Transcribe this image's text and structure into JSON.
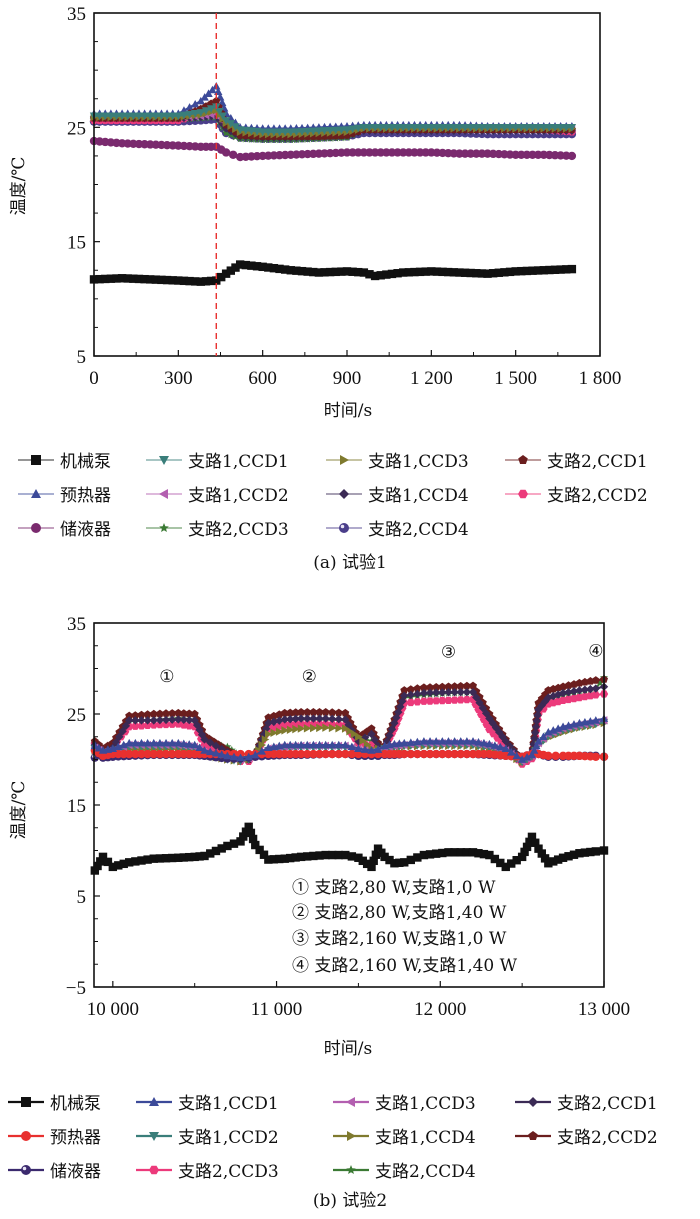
{
  "chart_data": [
    {
      "type": "line",
      "caption": "(a) 试验1",
      "xlabel": "时间/s",
      "ylabel": "温度/℃",
      "xlim": [
        0,
        1800
      ],
      "ylim": [
        5,
        35
      ],
      "xticks": [
        0,
        300,
        600,
        900,
        1200,
        1500,
        1800
      ],
      "xtick_labels": [
        "0",
        "300",
        "600",
        "900",
        "1 200",
        "1 500",
        "1 800"
      ],
      "yticks": [
        5,
        15,
        25,
        35
      ],
      "ytick_labels": [
        "5",
        "15",
        "25",
        "35"
      ],
      "grid": false,
      "vline": {
        "x": 435,
        "color": "#e8302f",
        "style": "dashed"
      },
      "legend_position": "bottom",
      "x": [
        0,
        100,
        200,
        300,
        380,
        435,
        470,
        520,
        600,
        700,
        800,
        900,
        960,
        1000,
        1100,
        1200,
        1300,
        1400,
        1500,
        1600,
        1700
      ],
      "series": [
        {
          "name": "机械泵",
          "color": "#111111",
          "marker": "square",
          "values": [
            11.7,
            11.8,
            11.7,
            11.6,
            11.5,
            11.6,
            12.2,
            13.0,
            12.8,
            12.5,
            12.3,
            12.4,
            12.3,
            12.0,
            12.3,
            12.4,
            12.3,
            12.2,
            12.4,
            12.5,
            12.6
          ]
        },
        {
          "name": "支路1,CCD1",
          "color": "#3a7e7a",
          "marker": "triangle-down",
          "values": [
            26.0,
            26.0,
            26.0,
            26.0,
            26.3,
            26.8,
            25.6,
            24.8,
            24.6,
            24.6,
            24.7,
            24.8,
            25.0,
            25.0,
            25.0,
            25.0,
            25.0,
            25.0,
            25.0,
            25.0,
            25.0
          ]
        },
        {
          "name": "支路1,CCD3",
          "color": "#7f7a2e",
          "marker": "triangle-right",
          "values": [
            25.9,
            25.9,
            25.9,
            25.9,
            26.1,
            26.5,
            25.4,
            24.6,
            24.4,
            24.4,
            24.5,
            24.6,
            24.9,
            24.9,
            24.9,
            24.9,
            24.9,
            24.9,
            24.9,
            24.9,
            24.9
          ]
        },
        {
          "name": "支路2,CCD1",
          "color": "#6b1e1e",
          "marker": "pentagon",
          "values": [
            25.8,
            25.8,
            25.8,
            25.8,
            26.6,
            27.3,
            25.2,
            24.3,
            24.2,
            24.2,
            24.2,
            24.3,
            24.8,
            24.8,
            24.8,
            24.8,
            24.8,
            24.8,
            24.8,
            24.8,
            24.8
          ]
        },
        {
          "name": "预热器",
          "color": "#3c4a99",
          "marker": "triangle-up",
          "values": [
            26.2,
            26.2,
            26.2,
            26.2,
            27.3,
            28.6,
            26.2,
            25.0,
            24.9,
            24.9,
            25.0,
            25.1,
            25.2,
            25.2,
            25.2,
            25.2,
            25.2,
            25.1,
            25.1,
            25.1,
            25.1
          ]
        },
        {
          "name": "支路1,CCD2",
          "color": "#b35fb0",
          "marker": "triangle-left",
          "values": [
            25.9,
            25.9,
            25.9,
            25.9,
            26.0,
            26.2,
            25.2,
            24.5,
            24.4,
            24.4,
            24.5,
            24.6,
            24.9,
            24.9,
            24.9,
            24.9,
            24.9,
            24.9,
            24.9,
            24.9,
            24.9
          ]
        },
        {
          "name": "支路1,CCD4",
          "color": "#3b2a55",
          "marker": "diamond",
          "values": [
            25.8,
            25.8,
            25.8,
            25.8,
            25.9,
            26.0,
            24.9,
            24.2,
            24.1,
            24.1,
            24.2,
            24.3,
            24.7,
            24.7,
            24.7,
            24.7,
            24.7,
            24.7,
            24.7,
            24.7,
            24.7
          ]
        },
        {
          "name": "支路2,CCD2",
          "color": "#ec3a7b",
          "marker": "hexagon",
          "values": [
            25.6,
            25.6,
            25.6,
            25.6,
            26.2,
            27.0,
            25.1,
            24.4,
            24.3,
            24.3,
            24.3,
            24.4,
            24.8,
            24.8,
            24.8,
            24.8,
            24.8,
            24.8,
            24.8,
            24.8,
            24.6
          ]
        },
        {
          "name": "储液器",
          "color": "#7a2a6e",
          "marker": "circle",
          "values": [
            23.8,
            23.6,
            23.5,
            23.4,
            23.3,
            23.3,
            22.8,
            22.4,
            22.5,
            22.6,
            22.7,
            22.8,
            22.8,
            22.8,
            22.8,
            22.8,
            22.7,
            22.7,
            22.6,
            22.6,
            22.5
          ]
        },
        {
          "name": "支路2,CCD3",
          "color": "#3b7a34",
          "marker": "star",
          "values": [
            25.7,
            25.7,
            25.7,
            25.7,
            25.8,
            25.9,
            24.5,
            24.0,
            23.9,
            23.9,
            24.0,
            24.1,
            24.8,
            24.8,
            24.8,
            24.8,
            24.8,
            24.8,
            24.8,
            24.8,
            24.8
          ]
        },
        {
          "name": "支路2,CCD4",
          "color": "#4a3e8a",
          "marker": "sphere",
          "values": [
            25.5,
            25.5,
            25.5,
            25.5,
            25.6,
            25.7,
            24.5,
            24.1,
            24.0,
            24.0,
            24.1,
            24.2,
            24.5,
            24.5,
            24.5,
            24.5,
            24.5,
            24.4,
            24.4,
            24.4,
            24.4
          ]
        }
      ],
      "legend_order": [
        "机械泵",
        "支路1,CCD1",
        "支路1,CCD3",
        "支路2,CCD1",
        "预热器",
        "支路1,CCD2",
        "支路1,CCD4",
        "支路2,CCD2",
        "储液器",
        "支路2,CCD3",
        "支路2,CCD4"
      ]
    },
    {
      "type": "line",
      "caption": "(b) 试验2",
      "xlabel": "时间/s",
      "ylabel": "温度/℃",
      "xlim": [
        9885,
        13000
      ],
      "ylim": [
        -5,
        35
      ],
      "xticks": [
        10000,
        11000,
        12000,
        13000
      ],
      "xtick_labels": [
        "10 000",
        "11 000",
        "12 000",
        "13 000"
      ],
      "yticks": [
        -5,
        5,
        15,
        25,
        35
      ],
      "ytick_labels": [
        "−5",
        "5",
        "15",
        "25",
        "35"
      ],
      "grid": false,
      "legend_position": "bottom",
      "annotations": [
        {
          "label": "①",
          "x": 10330,
          "y": 28.5
        },
        {
          "label": "②",
          "x": 11200,
          "y": 28.5
        },
        {
          "label": "③",
          "x": 12050,
          "y": 31.2
        },
        {
          "label": "④",
          "x": 12950,
          "y": 31.3
        }
      ],
      "condition_notes": [
        "① 支路2,80 W,支路1,0 W",
        "② 支路2,80 W,支路1,40 W",
        "③ 支路2,160 W,支路1,0 W",
        "④ 支路2,160 W,支路1,40 W"
      ],
      "x": [
        9890,
        9940,
        10000,
        10100,
        10250,
        10400,
        10500,
        10560,
        10700,
        10780,
        10830,
        10870,
        10950,
        11050,
        11150,
        11300,
        11420,
        11500,
        11580,
        11620,
        11660,
        11720,
        11780,
        11900,
        12050,
        12200,
        12300,
        12400,
        12500,
        12560,
        12600,
        12660,
        12750,
        12850,
        12950,
        13000
      ],
      "series": [
        {
          "name": "机械泵",
          "color": "#111111",
          "marker": "square",
          "values": [
            7.8,
            9.3,
            8.2,
            8.7,
            9.1,
            9.2,
            9.3,
            9.4,
            10.5,
            11.0,
            12.6,
            10.6,
            9.0,
            9.1,
            9.3,
            9.5,
            9.5,
            9.2,
            8.2,
            10.2,
            9.3,
            8.6,
            8.7,
            9.5,
            9.8,
            9.8,
            9.5,
            8.2,
            9.3,
            11.5,
            10.2,
            8.6,
            9.2,
            9.7,
            9.9,
            10.0
          ]
        },
        {
          "name": "支路1,CCD1",
          "color": "#3c4a99",
          "marker": "triangle-up",
          "values": [
            21.5,
            21.0,
            21.2,
            21.8,
            21.8,
            21.8,
            21.6,
            21.0,
            20.4,
            20.2,
            20.3,
            20.5,
            21.3,
            21.6,
            21.6,
            21.6,
            21.6,
            21.2,
            21.0,
            21.1,
            21.5,
            21.7,
            21.8,
            22.0,
            22.0,
            22.0,
            21.7,
            21.2,
            20.0,
            20.5,
            22.0,
            23.0,
            23.6,
            24.0,
            24.3,
            24.5
          ]
        },
        {
          "name": "预热器",
          "color": "#e8302f",
          "marker": "circle",
          "values": [
            21.0,
            20.4,
            20.6,
            20.6,
            20.6,
            20.6,
            20.6,
            20.6,
            20.6,
            20.6,
            20.6,
            20.6,
            20.6,
            20.6,
            20.6,
            20.6,
            20.6,
            20.6,
            20.6,
            20.6,
            20.6,
            20.6,
            20.6,
            20.6,
            20.6,
            20.6,
            20.6,
            20.4,
            20.3,
            20.6,
            20.6,
            20.4,
            20.4,
            20.4,
            20.3,
            20.3
          ]
        },
        {
          "name": "储液器",
          "color": "#3b2a6e",
          "marker": "sphere",
          "values": [
            20.2,
            20.2,
            20.3,
            20.4,
            20.5,
            20.5,
            20.5,
            20.4,
            20.1,
            20.1,
            20.2,
            20.3,
            20.4,
            20.5,
            20.5,
            20.6,
            20.6,
            20.4,
            20.4,
            20.4,
            20.5,
            20.5,
            20.6,
            20.6,
            20.6,
            20.6,
            20.5,
            20.4,
            20.3,
            20.6,
            20.6,
            20.3,
            20.3,
            20.4,
            20.4,
            20.3
          ]
        },
        {
          "name": "支路1,CCD3",
          "color": "#b35fb0",
          "marker": "triangle-left",
          "values": [
            21.3,
            20.8,
            21.0,
            21.6,
            21.6,
            21.6,
            21.4,
            20.8,
            20.2,
            20.0,
            20.1,
            20.4,
            21.2,
            21.4,
            21.5,
            21.5,
            21.5,
            21.1,
            20.8,
            21.0,
            21.3,
            21.5,
            21.6,
            21.8,
            21.8,
            21.8,
            21.5,
            21.0,
            19.8,
            20.4,
            21.8,
            22.8,
            23.4,
            23.8,
            24.1,
            24.3
          ]
        },
        {
          "name": "支路1,CCD2",
          "color": "#3a7e7a",
          "marker": "triangle-down",
          "values": [
            21.2,
            20.7,
            20.9,
            21.4,
            21.4,
            21.4,
            21.2,
            20.6,
            20.0,
            19.8,
            20.0,
            20.3,
            21.0,
            21.2,
            21.3,
            21.3,
            21.3,
            21.0,
            20.7,
            20.9,
            21.2,
            21.4,
            21.5,
            21.6,
            21.6,
            21.6,
            21.3,
            20.8,
            19.7,
            20.3,
            21.6,
            22.6,
            23.2,
            23.6,
            23.9,
            24.1
          ]
        },
        {
          "name": "支路1,CCD4",
          "color": "#7f7a2e",
          "marker": "triangle-right",
          "values": [
            21.0,
            20.6,
            20.8,
            21.1,
            21.1,
            21.2,
            21.0,
            20.5,
            20.0,
            19.8,
            20.0,
            20.4,
            22.8,
            23.2,
            23.4,
            23.5,
            23.4,
            22.5,
            21.2,
            21.2,
            21.2,
            21.3,
            21.4,
            21.5,
            21.5,
            21.5,
            21.2,
            20.8,
            19.7,
            20.3,
            21.6,
            22.4,
            23.0,
            23.5,
            23.8,
            24.0
          ]
        },
        {
          "name": "支路2,CCD1",
          "color": "#3b2a55",
          "marker": "diamond",
          "values": [
            21.6,
            20.8,
            21.3,
            24.3,
            24.3,
            24.4,
            24.3,
            22.2,
            20.8,
            20.0,
            20.0,
            20.3,
            24.0,
            24.4,
            24.5,
            24.5,
            24.4,
            22.0,
            22.8,
            21.5,
            21.3,
            24.0,
            27.0,
            27.3,
            27.4,
            27.4,
            24.5,
            22.0,
            19.8,
            20.4,
            25.5,
            26.8,
            27.3,
            27.6,
            27.8,
            28.0
          ]
        },
        {
          "name": "支路2,CCD2",
          "color": "#6b1e1e",
          "marker": "pentagon",
          "values": [
            22.0,
            21.2,
            21.8,
            24.8,
            25.0,
            25.1,
            25.0,
            22.6,
            21.0,
            20.1,
            20.0,
            20.3,
            24.6,
            25.1,
            25.2,
            25.2,
            25.1,
            22.4,
            23.4,
            21.8,
            21.5,
            24.4,
            27.6,
            27.9,
            28.0,
            28.1,
            25.0,
            22.2,
            19.9,
            20.5,
            26.2,
            27.6,
            28.0,
            28.4,
            28.7,
            28.8
          ]
        },
        {
          "name": "支路2,CCD3",
          "color": "#ec3a7b",
          "marker": "hexagon",
          "values": [
            21.8,
            20.7,
            21.4,
            23.6,
            23.8,
            23.9,
            23.6,
            21.6,
            20.4,
            19.8,
            19.8,
            20.3,
            23.4,
            23.8,
            23.9,
            23.9,
            23.8,
            21.8,
            21.6,
            21.2,
            21.3,
            23.4,
            26.2,
            26.4,
            26.5,
            26.6,
            23.3,
            21.4,
            19.5,
            20.1,
            25.0,
            26.1,
            26.5,
            26.8,
            27.1,
            27.2
          ]
        },
        {
          "name": "支路2,CCD4",
          "color": "#3b7a34",
          "marker": "star",
          "values": [
            21.4,
            21.1,
            21.3,
            24.2,
            24.3,
            24.5,
            24.3,
            21.8,
            21.4,
            20.3,
            20.3,
            20.5,
            24.1,
            24.3,
            24.4,
            24.4,
            24.3,
            22.5,
            22.0,
            21.5,
            21.5,
            23.8,
            26.8,
            27.1,
            27.3,
            27.4,
            24.0,
            21.5,
            20.0,
            20.5,
            25.3,
            26.7,
            27.1,
            27.5,
            27.8,
            29.0
          ]
        }
      ],
      "legend_order": [
        "机械泵",
        "支路1,CCD1",
        "支路1,CCD3",
        "支路2,CCD1",
        "预热器",
        "支路1,CCD2",
        "支路1,CCD4",
        "支路2,CCD2",
        "储液器",
        "支路2,CCD3",
        "支路2,CCD4"
      ]
    }
  ]
}
